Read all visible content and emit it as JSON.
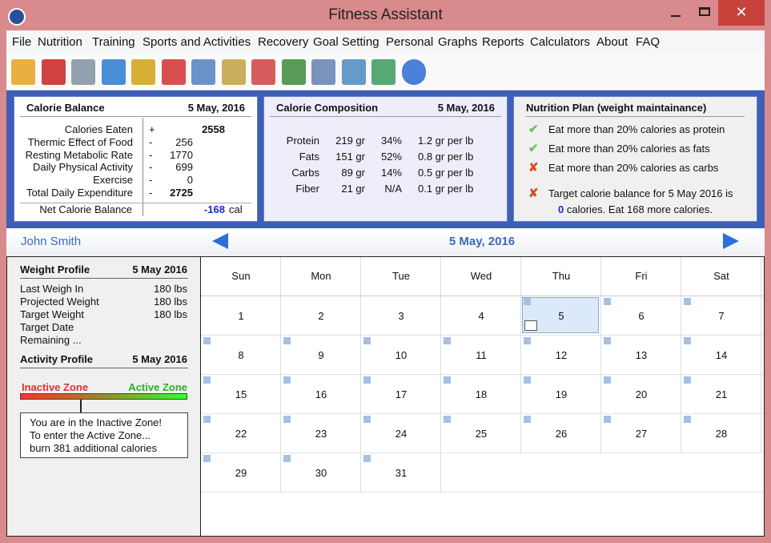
{
  "window": {
    "title": "Fitness Assistant"
  },
  "menu": [
    "File",
    "Nutrition",
    "Training",
    "Sports and Activities",
    "Recovery",
    "Goal Setting",
    "Personal",
    "Graphs",
    "Reports",
    "Calculators",
    "About",
    "FAQ"
  ],
  "calorie_balance": {
    "title": "Calorie Balance",
    "date": "5 May, 2016",
    "rows": [
      {
        "label": "Calories Eaten",
        "sign": "+",
        "value": 2558,
        "bold": true
      },
      {
        "label": "Thermic Effect of Food",
        "sign": "-",
        "value": 256
      },
      {
        "label": "Resting Metabolic Rate",
        "sign": "-",
        "value": 1770
      },
      {
        "label": "Daily Physical Activity",
        "sign": "-",
        "value": 699
      },
      {
        "label": "Exercise",
        "sign": "-",
        "value": 0
      },
      {
        "label": "Total Daily Expenditure",
        "sign": "-",
        "value": 2725,
        "bold": true
      }
    ],
    "net": {
      "label": "Net Calorie Balance",
      "value": -168,
      "unit": "cal"
    }
  },
  "calorie_composition": {
    "title": "Calorie Composition",
    "date": "5 May, 2016",
    "rows": [
      [
        "Protein",
        "219 gr",
        "34%",
        "1.2 gr per lb"
      ],
      [
        "Fats",
        "151 gr",
        "52%",
        "0.8 gr per lb"
      ],
      [
        "Carbs",
        "89 gr",
        "14%",
        "0.5 gr per lb"
      ],
      [
        "Fiber",
        "21 gr",
        "N/A",
        "0.1 gr per lb"
      ]
    ]
  },
  "nutrition_plan": {
    "title": "Nutrition Plan  (weight maintainance)",
    "items": [
      {
        "text": "Eat more than 20% calories as protein",
        "met": true
      },
      {
        "text": "Eat more than 20% calories as fats",
        "met": true
      },
      {
        "text": "Eat more than 20% calories as carbs",
        "met": false
      }
    ],
    "target": {
      "text": "Target calorie balance for 5 May 2016 is",
      "value": 0,
      "rest": "calories. Eat 168 more calories.",
      "met": false
    }
  },
  "user": "John Smith",
  "calendar": {
    "date": "5 May, 2016",
    "weekdays": [
      "Sun",
      "Mon",
      "Tue",
      "Wed",
      "Thu",
      "Fri",
      "Sat"
    ],
    "weeks": [
      [
        1,
        2,
        3,
        4,
        5,
        6,
        7
      ],
      [
        8,
        9,
        10,
        11,
        12,
        13,
        14
      ],
      [
        15,
        16,
        17,
        18,
        19,
        20,
        21
      ],
      [
        22,
        23,
        24,
        25,
        26,
        27,
        28
      ],
      [
        29,
        30,
        31,
        null,
        null,
        null,
        null
      ]
    ],
    "selected": 5
  },
  "weight_profile": {
    "title": "Weight Profile",
    "date": "5 May 2016",
    "rows": [
      {
        "label": "Last Weigh In",
        "value": "180 lbs"
      },
      {
        "label": "Projected Weight",
        "value": "180 lbs"
      },
      {
        "label": "Target Weight",
        "value": "180 lbs"
      },
      {
        "label": "Target Date"
      },
      {
        "label": "Remaining ..."
      }
    ]
  },
  "activity_profile": {
    "title": "Activity Profile",
    "date": "5 May 2016",
    "inactive": "Inactive Zone",
    "active": "Active Zone",
    "message": [
      "You are in the Inactive Zone!",
      "To enter the Active Zone...",
      "burn 381 additional calories"
    ]
  }
}
